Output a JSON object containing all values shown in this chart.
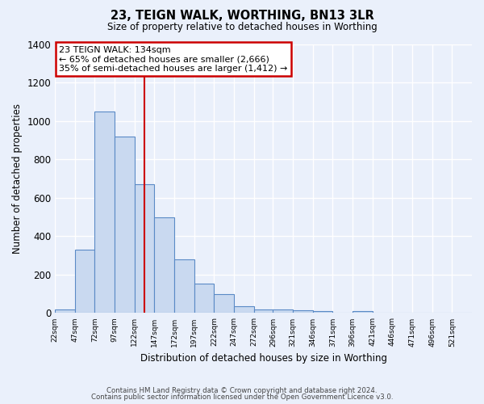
{
  "title": "23, TEIGN WALK, WORTHING, BN13 3LR",
  "subtitle": "Size of property relative to detached houses in Worthing",
  "xlabel": "Distribution of detached houses by size in Worthing",
  "ylabel": "Number of detached properties",
  "categories": [
    "22sqm",
    "47sqm",
    "72sqm",
    "97sqm",
    "122sqm",
    "147sqm",
    "172sqm",
    "197sqm",
    "222sqm",
    "247sqm",
    "272sqm",
    "296sqm",
    "321sqm",
    "346sqm",
    "371sqm",
    "396sqm",
    "421sqm",
    "446sqm",
    "471sqm",
    "496sqm",
    "521sqm"
  ],
  "values": [
    20,
    330,
    1050,
    920,
    670,
    500,
    280,
    155,
    100,
    35,
    20,
    20,
    15,
    10,
    0,
    10,
    0,
    0,
    0,
    0,
    0
  ],
  "bar_color": "#c9d9f0",
  "bar_edge_color": "#5a8ac6",
  "background_color": "#eaf0fb",
  "grid_color": "#ffffff",
  "vline_color": "#cc0000",
  "annotation_text": "23 TEIGN WALK: 134sqm\n← 65% of detached houses are smaller (2,666)\n35% of semi-detached houses are larger (1,412) →",
  "annotation_box_color": "#ffffff",
  "annotation_box_edge": "#cc0000",
  "ylim": [
    0,
    1400
  ],
  "yticks": [
    0,
    200,
    400,
    600,
    800,
    1000,
    1200,
    1400
  ],
  "footer1": "Contains HM Land Registry data © Crown copyright and database right 2024.",
  "footer2": "Contains public sector information licensed under the Open Government Licence v3.0.",
  "bin_width": 25,
  "vline_x": 134
}
